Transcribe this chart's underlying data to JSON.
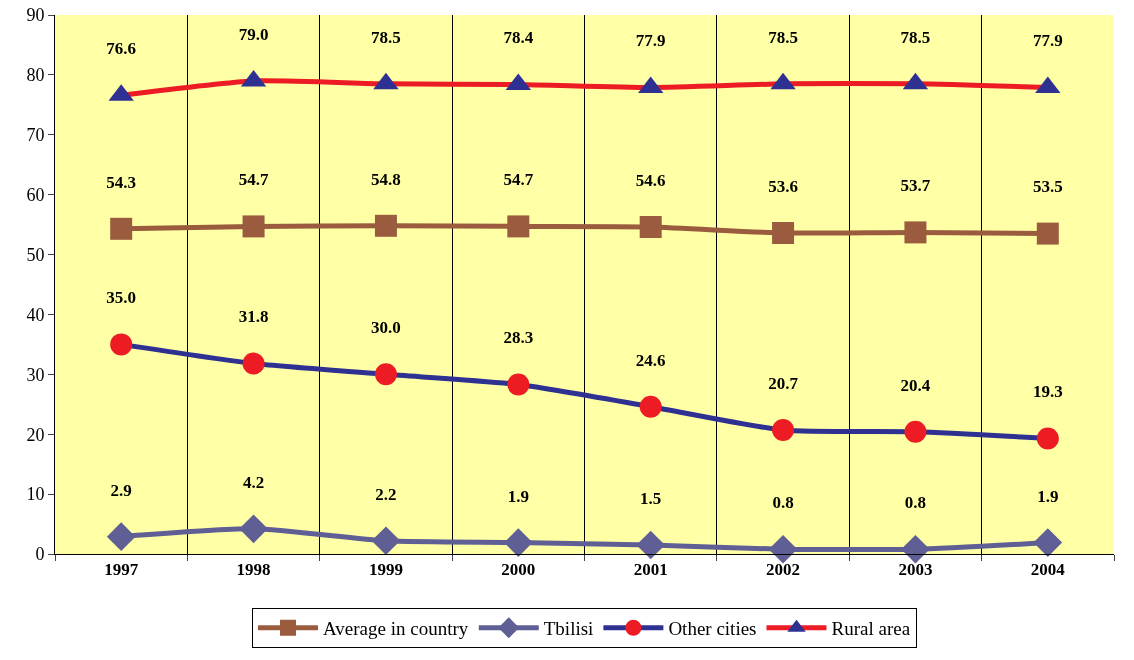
{
  "chart_data": {
    "type": "line",
    "categories": [
      "1997",
      "1998",
      "1999",
      "2000",
      "2001",
      "2002",
      "2003",
      "2004"
    ],
    "ylim": [
      0,
      90
    ],
    "yticks": [
      0,
      10,
      20,
      30,
      40,
      50,
      60,
      70,
      80,
      90
    ],
    "grid": "x",
    "legend": "bottom",
    "line_style": "solid",
    "series": [
      {
        "name": "Average in country",
        "color": "#9a5b3e",
        "marker": "square",
        "values": [
          54.3,
          54.7,
          54.8,
          54.7,
          54.6,
          53.6,
          53.7,
          53.5
        ],
        "value_labels": [
          "54.3",
          "54.7",
          "54.8",
          "54.7",
          "54.6",
          "53.6",
          "53.7",
          "53.5"
        ]
      },
      {
        "name": "Tbilisi",
        "color": "#5f5f96",
        "marker": "diamond",
        "values": [
          2.9,
          4.2,
          2.2,
          1.9,
          1.5,
          0.8,
          0.8,
          1.9
        ],
        "value_labels": [
          "2.9",
          "4.2",
          "2.2",
          "1.9",
          "1.5",
          "0.8",
          "0.8",
          "1.9"
        ]
      },
      {
        "name": "Other cities",
        "color": "#2e3192",
        "colors": [
          "#ed1c24",
          "#ed1c24",
          "#ed1c24",
          "#ed1c24",
          "#ed1c24",
          "#ed1c24",
          "#ed1c24",
          "#ed1c24"
        ],
        "marker": "circle",
        "values": [
          35.0,
          31.8,
          30.0,
          28.3,
          24.6,
          20.7,
          20.4,
          19.3
        ],
        "value_labels": [
          "35.0",
          "31.8",
          "30.0",
          "28.3",
          "24.6",
          "20.7",
          "20.4",
          "19.3"
        ]
      },
      {
        "name": "Rural area",
        "color": "#ed1c24",
        "colors": [
          "#2e3192",
          "#2e3192",
          "#2e3192",
          "#2e3192",
          "#2e3192",
          "#2e3192",
          "#2e3192",
          "#2e3192"
        ],
        "marker": "triangle",
        "values": [
          76.6,
          79.0,
          78.5,
          78.4,
          77.9,
          78.5,
          78.5,
          77.9
        ],
        "value_labels": [
          "76.6",
          "79.0",
          "78.5",
          "78.4",
          "77.9",
          "78.5",
          "78.5",
          "77.9"
        ]
      }
    ]
  }
}
